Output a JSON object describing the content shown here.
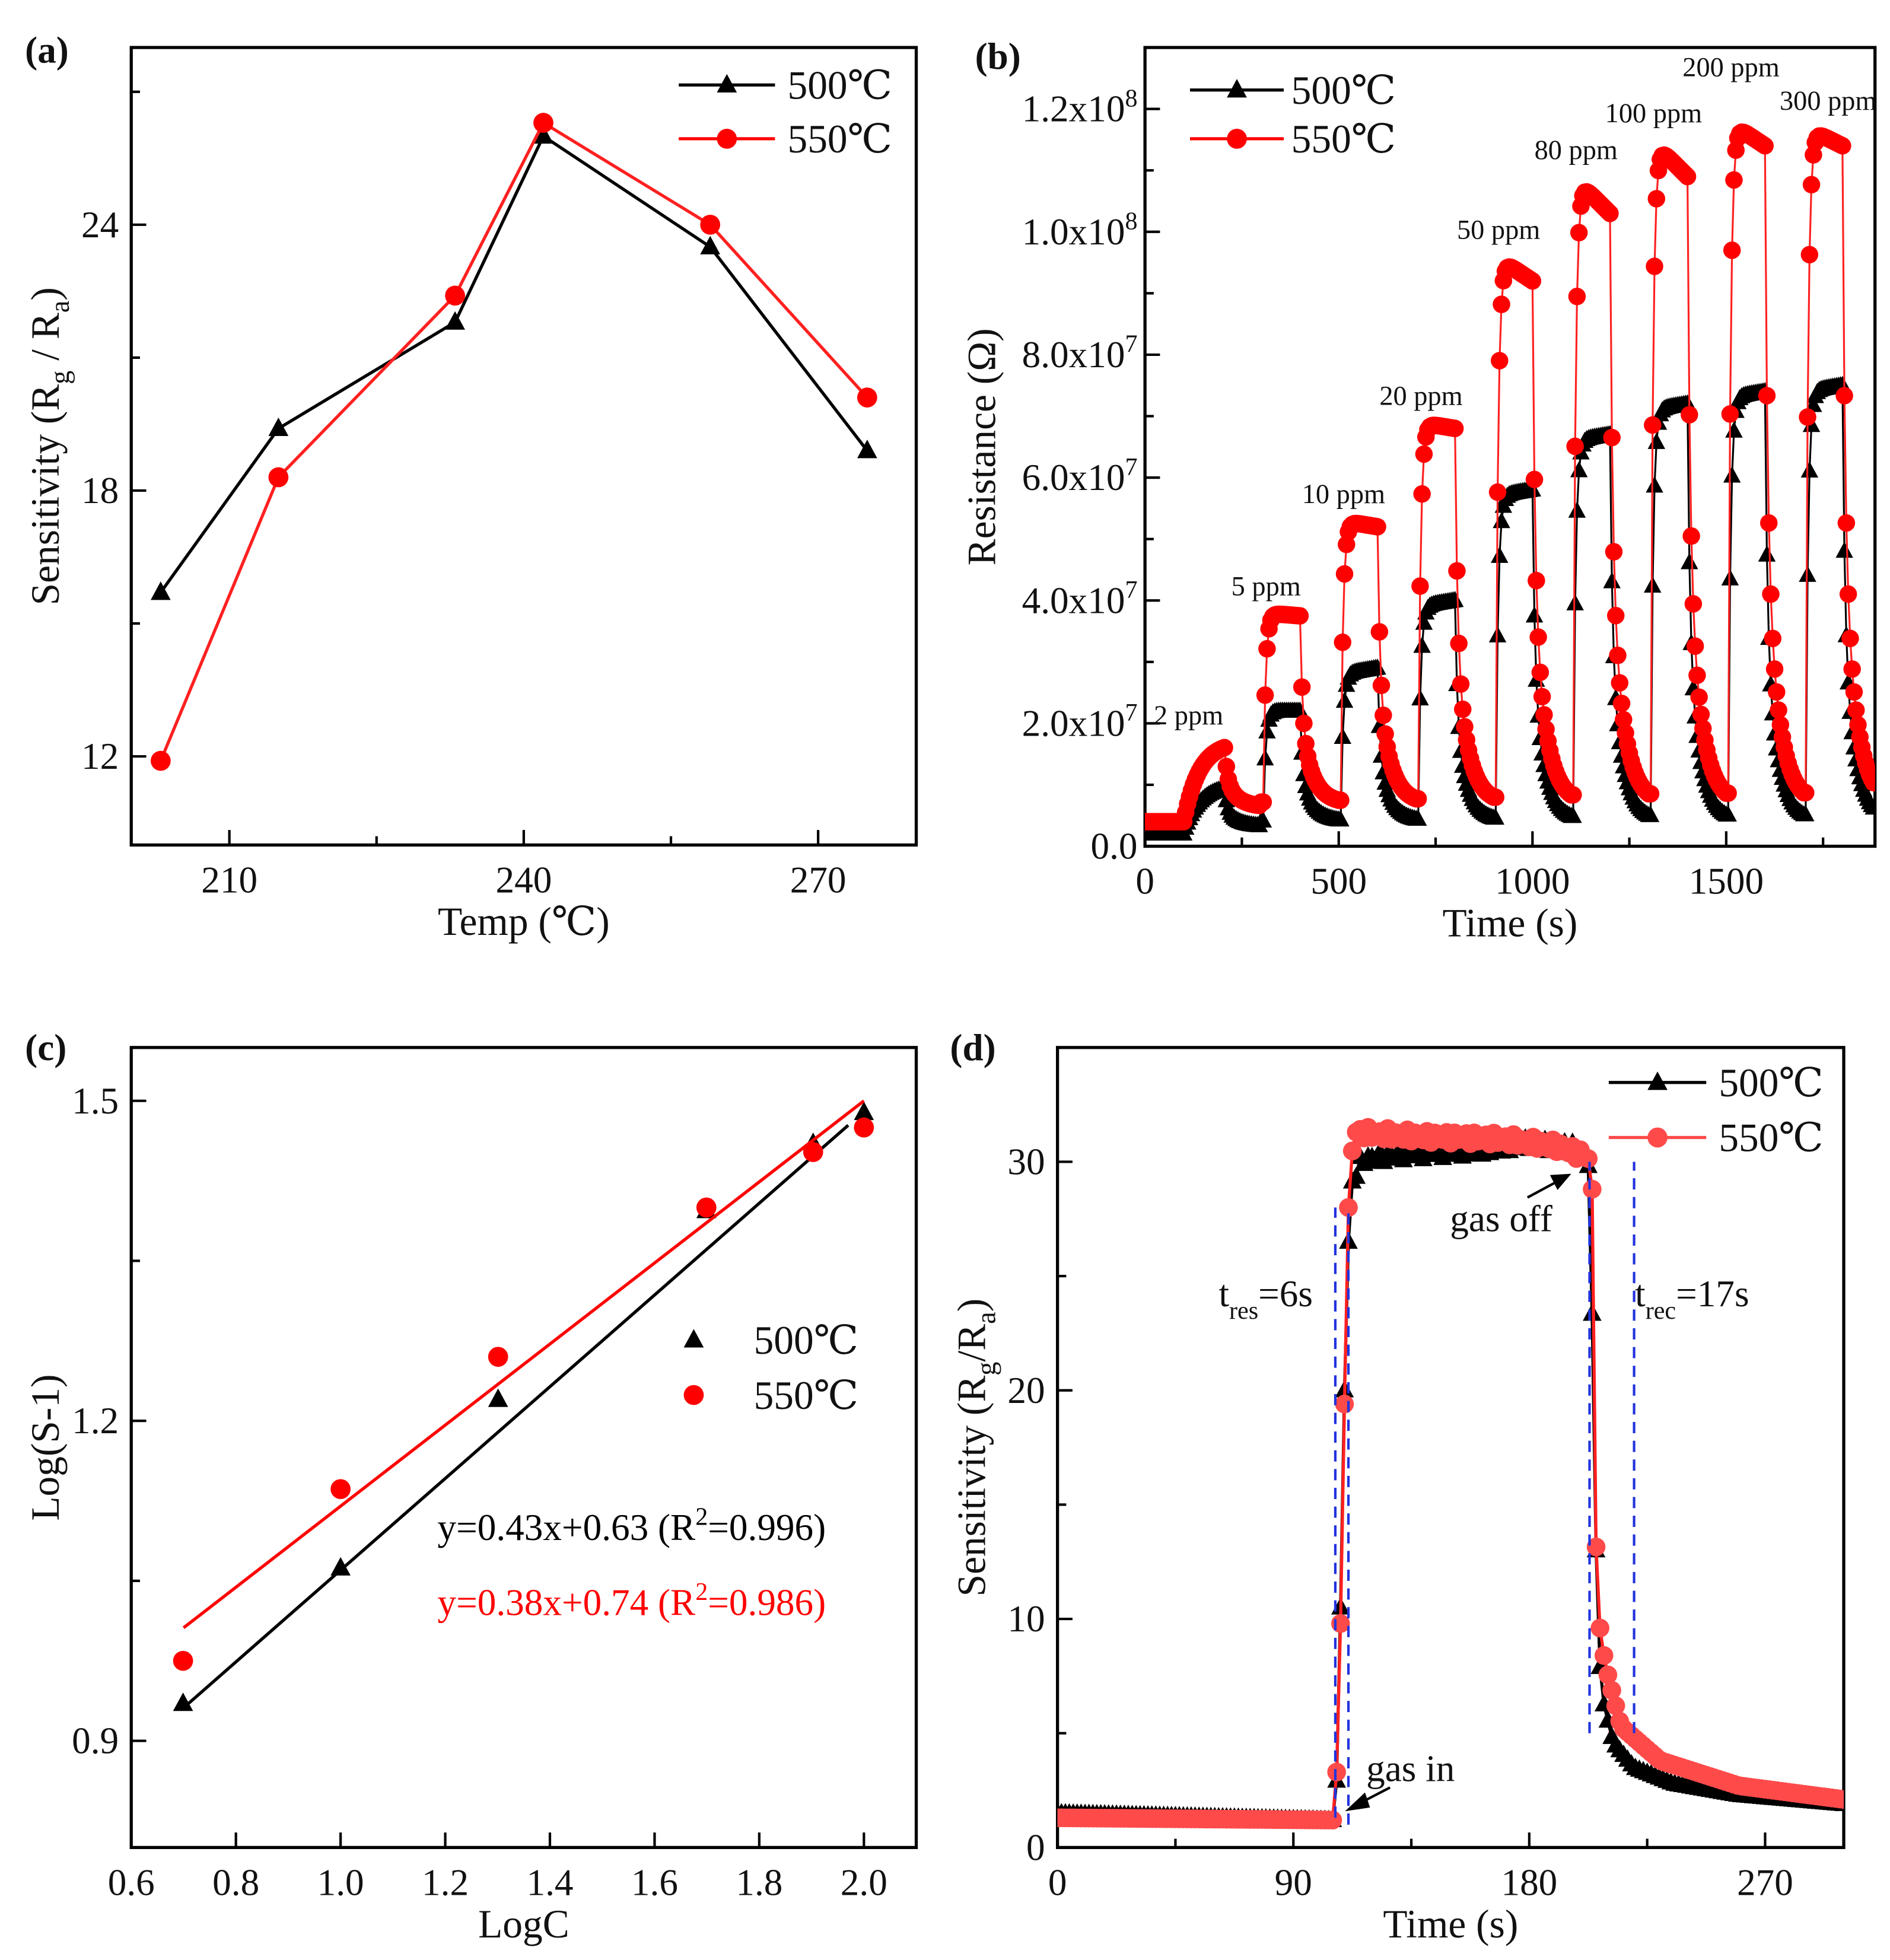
{
  "chart_data": [
    {
      "panel": "(a)",
      "type": "line",
      "xlabel": "Temp (℃)",
      "ylabel_parts": [
        {
          "t": "Sensitivity (R",
          "sub": false
        },
        {
          "t": "g",
          "sub": true
        },
        {
          "t": " / R",
          "sub": false
        },
        {
          "t": "a",
          "sub": true
        },
        {
          "t": ")",
          "sub": false
        }
      ],
      "xlim": [
        200,
        280
      ],
      "ylim": [
        10,
        28
      ],
      "xticks": [
        210,
        240,
        270
      ],
      "xtick_labels": [
        "210",
        "240",
        "270"
      ],
      "xminor": [
        225,
        255
      ],
      "yticks": [
        12,
        18,
        24
      ],
      "ytick_labels": [
        "12",
        "18",
        "24"
      ],
      "yminor": [
        15,
        21,
        27
      ],
      "legend_position": "top-right",
      "series": [
        {
          "name": "500℃",
          "color": "#000000",
          "marker": "triangle",
          "x": [
            203,
            215,
            233,
            242,
            259,
            275
          ],
          "y": [
            15.7,
            19.4,
            21.8,
            26.0,
            23.5,
            18.9
          ]
        },
        {
          "name": "550℃",
          "color": "#ff0000",
          "marker": "circle",
          "x": [
            203,
            215,
            233,
            242,
            259,
            275
          ],
          "y": [
            11.9,
            18.3,
            22.4,
            26.3,
            24.0,
            20.1
          ]
        }
      ]
    },
    {
      "panel": "(b)",
      "type": "scatter",
      "xlabel": "Time (s)",
      "ylabel": "Resistance (Ω)",
      "xlim": [
        0,
        1884
      ],
      "ylim": [
        0,
        130000000
      ],
      "xticks": [
        0,
        500,
        1000,
        1500
      ],
      "xtick_labels": [
        "0",
        "500",
        "1000",
        "1500"
      ],
      "xminor": [
        250,
        750,
        1250,
        1750
      ],
      "yticks": [
        0,
        20000000,
        40000000,
        60000000,
        80000000,
        100000000,
        120000000
      ],
      "ytick_labels": [
        {
          "m": "0.0",
          "e": ""
        },
        {
          "m": "2.0x10",
          "e": "7"
        },
        {
          "m": "4.0x10",
          "e": "7"
        },
        {
          "m": "6.0x10",
          "e": "7"
        },
        {
          "m": "8.0x10",
          "e": "7"
        },
        {
          "m": "1.0x10",
          "e": "8"
        },
        {
          "m": "1.2x10",
          "e": "8"
        }
      ],
      "yminor": [
        10000000,
        30000000,
        50000000,
        70000000,
        90000000,
        110000000
      ],
      "legend_position": "top-left",
      "pulses": [
        {
          "label": "2 ppm",
          "on": 100,
          "off": 205,
          "peak_500": [
            10000000,
            10000000
          ],
          "peak_550": [
            17000000,
            17000000
          ]
        },
        {
          "label": "5 ppm",
          "on": 305,
          "off": 400,
          "peak_500": [
            22000000,
            22000000
          ],
          "peak_550": [
            38000000,
            37500000
          ]
        },
        {
          "label": "10 ppm",
          "on": 505,
          "off": 600,
          "peak_500": [
            28000000,
            29000000
          ],
          "peak_550": [
            53000000,
            52000000
          ]
        },
        {
          "label": "20 ppm",
          "on": 705,
          "off": 800,
          "peak_500": [
            39000000,
            40000000
          ],
          "peak_550": [
            69000000,
            68000000
          ]
        },
        {
          "label": "50 ppm",
          "on": 905,
          "off": 1000,
          "peak_500": [
            57000000,
            58000000
          ],
          "peak_550": [
            96000000,
            92000000
          ]
        },
        {
          "label": "80 ppm",
          "on": 1105,
          "off": 1200,
          "peak_500": [
            66000000,
            67000000
          ],
          "peak_550": [
            109000000,
            103000000
          ]
        },
        {
          "label": "100 ppm",
          "on": 1305,
          "off": 1400,
          "peak_500": [
            71000000,
            72000000
          ],
          "peak_550": [
            115000000,
            109000000
          ]
        },
        {
          "label": "200 ppm",
          "on": 1505,
          "off": 1600,
          "peak_500": [
            73000000,
            74000000
          ],
          "peak_550": [
            118000000,
            114000000
          ]
        },
        {
          "label": "300 ppm",
          "on": 1705,
          "off": 1800,
          "peak_500": [
            74000000,
            75000000
          ],
          "peak_550": [
            117000000,
            114000000
          ]
        }
      ],
      "series": [
        {
          "name": "500℃",
          "color": "#000000",
          "marker": "triangle",
          "baseline": [
            2000000,
            4000000
          ]
        },
        {
          "name": "550℃",
          "color": "#ff0000",
          "marker": "circle",
          "baseline": [
            4000000,
            7000000
          ]
        }
      ]
    },
    {
      "panel": "(c)",
      "type": "scatter",
      "xlabel": "LogC",
      "ylabel": "Log(S-1)",
      "xlim": [
        0.6,
        2.1
      ],
      "ylim": [
        0.8,
        1.55
      ],
      "xticks": [
        0.6,
        0.8,
        1.0,
        1.2,
        1.4,
        1.6,
        1.8,
        2.0
      ],
      "xtick_labels": [
        "0.6",
        "0.8",
        "1.0",
        "1.2",
        "1.4",
        "1.6",
        "1.8",
        "2.0"
      ],
      "yticks": [
        0.9,
        1.2,
        1.5
      ],
      "ytick_labels": [
        "0.9",
        "1.2",
        "1.5"
      ],
      "yminor": [
        1.05,
        1.35
      ],
      "legend_position": "center-right",
      "series": [
        {
          "name": "500℃",
          "color": "#000000",
          "marker": "triangle",
          "x": [
            0.699,
            1.0,
            1.301,
            1.699,
            1.903,
            2.0
          ],
          "y": [
            0.935,
            1.062,
            1.22,
            1.397,
            1.46,
            1.489
          ],
          "fit": {
            "slope": 0.43,
            "intercept": 0.63,
            "x_range": [
              0.7,
              1.97
            ],
            "label_pre": "y=0.43x+0.63 (R",
            "label_sup": "2",
            "label_post": "=0.996)"
          }
        },
        {
          "name": "550℃",
          "color": "#ff0000",
          "marker": "circle",
          "x": [
            0.699,
            1.0,
            1.301,
            1.699,
            1.903,
            2.0
          ],
          "y": [
            0.975,
            1.136,
            1.26,
            1.4,
            1.452,
            1.475
          ],
          "fit": {
            "slope": 0.38,
            "intercept": 0.74,
            "x_range": [
              0.7,
              2.0
            ],
            "label_pre": "y=0.38x+0.74 (R",
            "label_sup": "2",
            "label_post": "=0.986)"
          }
        }
      ]
    },
    {
      "panel": "(d)",
      "type": "line",
      "xlabel": "Time (s)",
      "ylabel_parts": [
        {
          "t": "Sensitivity (R",
          "sub": false
        },
        {
          "t": "g",
          "sub": true
        },
        {
          "t": "/R",
          "sub": false
        },
        {
          "t": "a",
          "sub": true
        },
        {
          "t": ")",
          "sub": false
        }
      ],
      "xlim": [
        0,
        300
      ],
      "ylim": [
        0,
        35
      ],
      "xticks": [
        0,
        90,
        180,
        270
      ],
      "xtick_labels": [
        "0",
        "90",
        "180",
        "270"
      ],
      "xminor": [
        45,
        135,
        225
      ],
      "yticks": [
        0,
        10,
        20,
        30
      ],
      "ytick_labels": [
        "0",
        "10",
        "20",
        "30"
      ],
      "yminor": [
        5,
        15,
        25
      ],
      "legend_position": "top-right",
      "series": [
        {
          "name": "500℃",
          "color": "#000000",
          "marker": "triangle",
          "points": [
            [
              0,
              1.5
            ],
            [
              105,
              1.2
            ],
            [
              107,
              3.5
            ],
            [
              108,
              10.5
            ],
            [
              109,
              17.2
            ],
            [
              110,
              22.8
            ],
            [
              111,
              26.5
            ],
            [
              112,
              29
            ],
            [
              116,
              30.1
            ],
            [
              130,
              30.3
            ],
            [
              160,
              30.5
            ],
            [
              180,
              30.8
            ],
            [
              198,
              30.6
            ],
            [
              203,
              30
            ],
            [
              205,
              16.7
            ],
            [
              206,
              9.3
            ],
            [
              208,
              6.5
            ],
            [
              212,
              4.6
            ],
            [
              220,
              3.5
            ],
            [
              235,
              2.8
            ],
            [
              260,
              2.3
            ],
            [
              300,
              1.9
            ]
          ]
        },
        {
          "name": "550℃",
          "color": "#ff4a4a",
          "marker": "circle",
          "points": [
            [
              0,
              1.3
            ],
            [
              105,
              1.2
            ],
            [
              107,
              4
            ],
            [
              108,
              9.8
            ],
            [
              109,
              16.5
            ],
            [
              110,
              22.3
            ],
            [
              111,
              28
            ],
            [
              113,
              31.3
            ],
            [
              140,
              31.1
            ],
            [
              170,
              31
            ],
            [
              190,
              30.7
            ],
            [
              203,
              30.2
            ],
            [
              204,
              28.8
            ],
            [
              205,
              15
            ],
            [
              206,
              11.3
            ],
            [
              207,
              9.6
            ],
            [
              209,
              8
            ],
            [
              215,
              5.3
            ],
            [
              230,
              3.8
            ],
            [
              260,
              2.7
            ],
            [
              300,
              2.1
            ]
          ]
        }
      ],
      "guides": [
        {
          "x": 106,
          "y": [
            1.3,
            28
          ]
        },
        {
          "x": 111,
          "y": [
            1,
            28
          ]
        },
        {
          "x": 203,
          "y": [
            5,
            30
          ]
        },
        {
          "x": 220,
          "y": [
            5,
            30
          ]
        }
      ],
      "guide_color": "#2233dd",
      "annotations": {
        "tres": {
          "t": "t",
          "sub": "res",
          "post": "=6s"
        },
        "trec": {
          "t": "t",
          "sub": "rec",
          "post": "=17s"
        },
        "gas_in": "gas in",
        "gas_off": "gas off"
      }
    }
  ]
}
